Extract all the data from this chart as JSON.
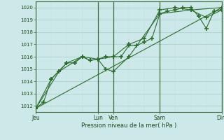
{
  "title": "",
  "xlabel": "Pression niveau de la mer( hPa )",
  "ylabel": "",
  "bg_color": "#cce8e8",
  "grid_major_color": "#aacccc",
  "grid_minor_color": "#c0dada",
  "line_color": "#2d6e2d",
  "ylim": [
    1011.5,
    1020.5
  ],
  "xlim": [
    0,
    288
  ],
  "yticks": [
    1012,
    1013,
    1014,
    1015,
    1016,
    1017,
    1018,
    1019,
    1020
  ],
  "day_labels": [
    "Jeu",
    "Lun",
    "Ven",
    "Sam",
    "Dim"
  ],
  "day_positions": [
    0,
    96,
    120,
    192,
    288
  ],
  "series1_x": [
    0,
    12,
    24,
    36,
    48,
    60,
    72,
    84,
    96,
    108,
    120,
    132,
    144,
    156,
    168,
    180,
    192,
    204,
    216,
    228,
    240,
    252,
    264,
    276,
    288
  ],
  "series1_y": [
    1011.8,
    1012.3,
    1014.2,
    1014.8,
    1015.5,
    1015.5,
    1016.0,
    1015.7,
    1015.8,
    1016.0,
    1016.0,
    1016.0,
    1016.9,
    1016.9,
    1017.2,
    1017.5,
    1019.5,
    1019.7,
    1019.8,
    1020.0,
    1020.0,
    1019.3,
    1018.3,
    1019.7,
    1019.8
  ],
  "series2_x": [
    0,
    24,
    48,
    72,
    96,
    120,
    144,
    168,
    192,
    216,
    240,
    264,
    288
  ],
  "series2_y": [
    1011.8,
    1014.2,
    1015.5,
    1016.0,
    1015.8,
    1016.0,
    1017.0,
    1017.5,
    1019.8,
    1020.0,
    1019.8,
    1019.2,
    1019.8
  ],
  "series3_x": [
    0,
    36,
    72,
    84,
    96,
    108,
    120,
    144,
    192,
    240,
    288
  ],
  "series3_y": [
    1011.8,
    1014.8,
    1016.0,
    1015.7,
    1015.8,
    1015.0,
    1014.8,
    1016.0,
    1019.5,
    1019.8,
    1020.0
  ],
  "series4_x": [
    0,
    288
  ],
  "series4_y": [
    1011.8,
    1020.0
  ],
  "vline_positions": [
    0,
    96,
    120,
    192,
    288
  ],
  "vline_color": "#3d6b3d"
}
